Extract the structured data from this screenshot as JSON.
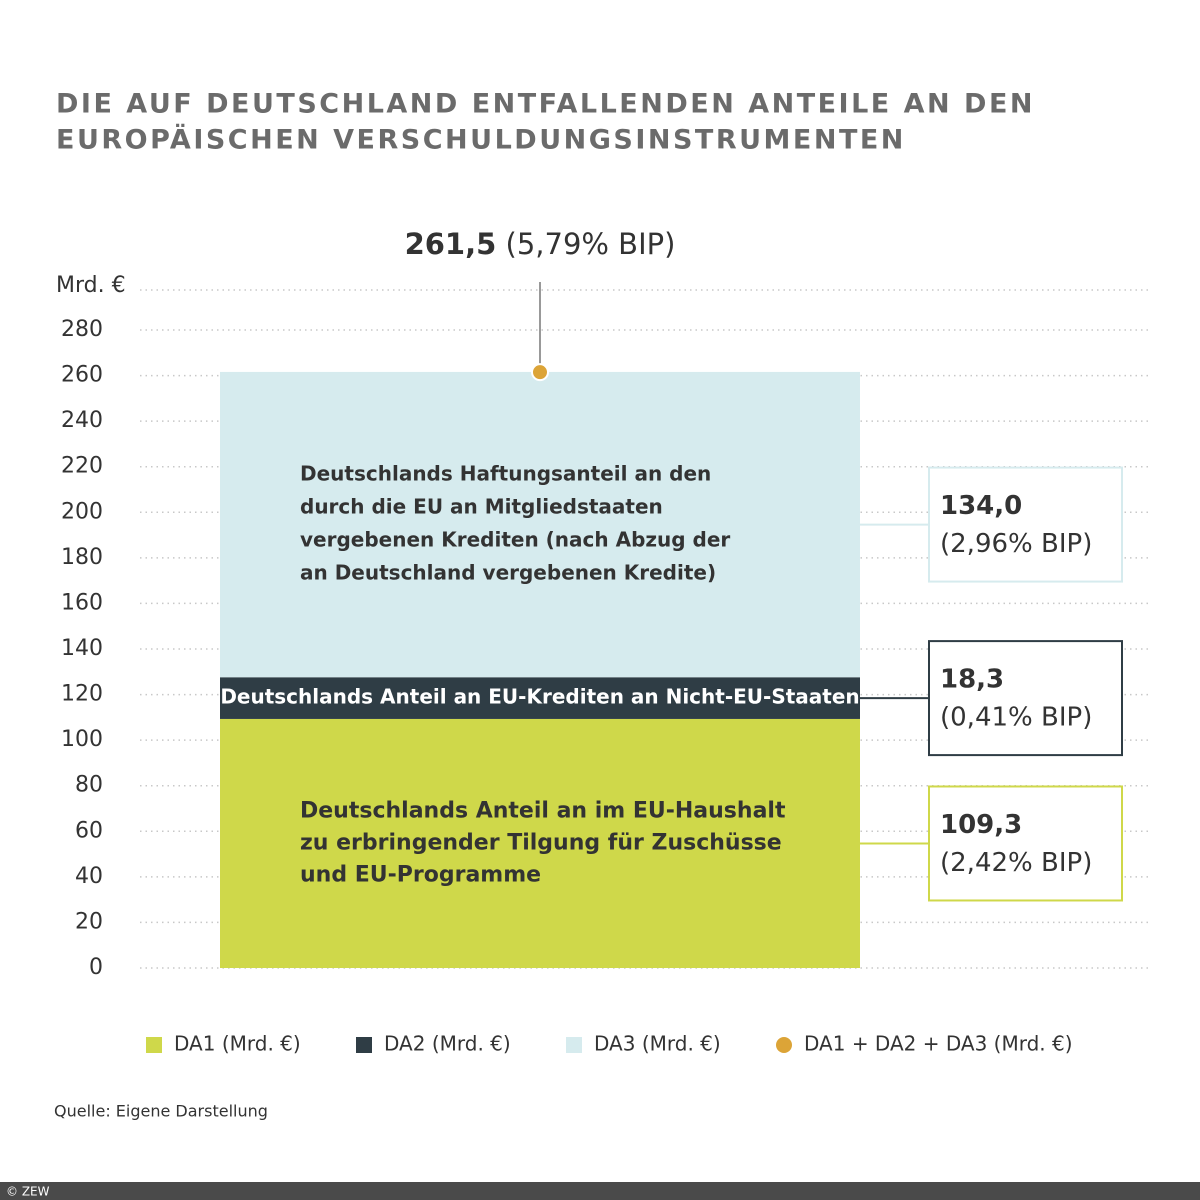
{
  "chart_data": {
    "type": "bar",
    "title": [
      "DIE AUF DEUTSCHLAND ENTFALLENDEN ANTEILE AN DEN",
      "EUROPÄISCHEN VERSCHULDUNGSINSTRUMENTEN"
    ],
    "y_label": "Mrd. €",
    "ylim": [
      0,
      280
    ],
    "yticks": [
      0,
      20,
      40,
      60,
      80,
      100,
      120,
      140,
      160,
      180,
      200,
      220,
      240,
      260,
      280
    ],
    "grid": true,
    "series": [
      {
        "name": "DA1 (Mrd. €)",
        "color": "#cfd84a",
        "values": [
          109.3
        ],
        "value_labels": [
          "109,3"
        ],
        "share_labels": [
          "(2,42% BIP)"
        ],
        "description": [
          "Deutschlands Anteil an im EU-Haushalt",
          "zu erbringender Tilgung für Zuschüsse",
          "und EU-Programme"
        ]
      },
      {
        "name": "DA2 (Mrd. €)",
        "color": "#2f3d45",
        "values": [
          18.3
        ],
        "value_labels": [
          "18,3"
        ],
        "share_labels": [
          "(0,41% BIP)"
        ],
        "description": [
          "Deutschlands Anteil an EU-Krediten an Nicht-EU-Staaten"
        ]
      },
      {
        "name": "DA3 (Mrd. €)",
        "color": "#d6ebee",
        "values": [
          134.0
        ],
        "value_labels": [
          "134,0"
        ],
        "share_labels": [
          "(2,96% BIP)"
        ],
        "description": [
          "Deutschlands Haftungsanteil an den",
          "durch die EU an Mitgliedstaaten",
          "vergebenen Krediten (nach Abzug der",
          "an Deutschland vergebenen Kredite)"
        ]
      }
    ],
    "total": {
      "name": "DA1 + DA2 + DA3 (Mrd. €)",
      "color": "#dca437",
      "value": 261.5,
      "value_label": "261,5",
      "share_label": "(5,79% BIP)"
    },
    "source": "Quelle: Eigene Darstellung",
    "copyright": "© ZEW"
  }
}
